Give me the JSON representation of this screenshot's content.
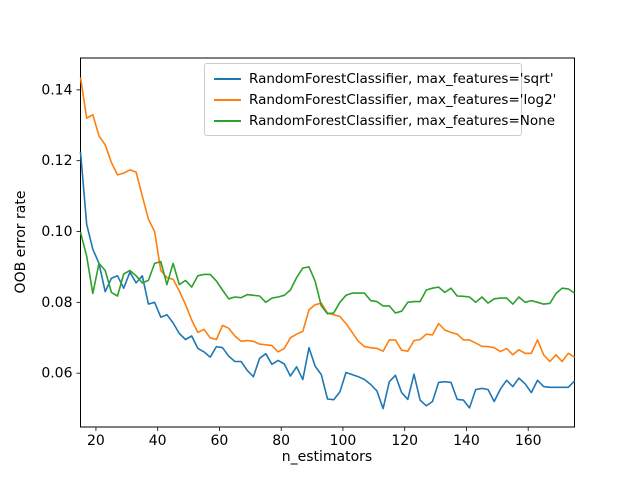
{
  "figure": {
    "background": "#ffffff"
  },
  "chart_data": {
    "type": "line",
    "title": "",
    "xlabel": "n_estimators",
    "ylabel": "OOB error rate",
    "xlim": [
      15,
      175
    ],
    "ylim": [
      0.0448,
      0.149
    ],
    "xticks": [
      20,
      40,
      60,
      80,
      100,
      120,
      140,
      160
    ],
    "xtick_labels": [
      "20",
      "40",
      "60",
      "80",
      "100",
      "120",
      "140",
      "160"
    ],
    "yticks": [
      0.06,
      0.08,
      0.1,
      0.12,
      0.14
    ],
    "ytick_labels": [
      "0.06",
      "0.08",
      "0.10",
      "0.12",
      "0.14"
    ],
    "grid": false,
    "legend_position": "upper center",
    "x": [
      15,
      17,
      19,
      21,
      23,
      25,
      27,
      29,
      31,
      33,
      35,
      37,
      39,
      41,
      43,
      45,
      47,
      49,
      51,
      53,
      55,
      57,
      59,
      61,
      63,
      65,
      67,
      69,
      71,
      73,
      75,
      77,
      79,
      81,
      83,
      85,
      87,
      89,
      91,
      93,
      95,
      97,
      99,
      101,
      103,
      105,
      107,
      109,
      111,
      113,
      115,
      117,
      119,
      121,
      123,
      125,
      127,
      129,
      131,
      133,
      135,
      137,
      139,
      141,
      143,
      145,
      147,
      149,
      151,
      153,
      155,
      157,
      159,
      161,
      163,
      165,
      167,
      169,
      171,
      173,
      175
    ],
    "series": [
      {
        "name": "RandomForestClassifier, max_features='sqrt'",
        "color": "#1f77b4",
        "values": [
          0.1225,
          0.102,
          0.095,
          0.091,
          0.083,
          0.0868,
          0.0875,
          0.084,
          0.0885,
          0.0855,
          0.0875,
          0.0795,
          0.08,
          0.0758,
          0.0765,
          0.0742,
          0.0712,
          0.0695,
          0.0705,
          0.067,
          0.066,
          0.0645,
          0.0675,
          0.0672,
          0.0648,
          0.0633,
          0.0633,
          0.0608,
          0.059,
          0.0642,
          0.0655,
          0.0625,
          0.0636,
          0.0626,
          0.0592,
          0.0618,
          0.0582,
          0.0672,
          0.062,
          0.0596,
          0.0527,
          0.0525,
          0.0547,
          0.0602,
          0.0596,
          0.059,
          0.0582,
          0.0568,
          0.055,
          0.05,
          0.0576,
          0.0594,
          0.0545,
          0.0526,
          0.0597,
          0.0524,
          0.0508,
          0.052,
          0.0574,
          0.0576,
          0.0574,
          0.0526,
          0.0524,
          0.0502,
          0.0554,
          0.0557,
          0.0554,
          0.052,
          0.0555,
          0.058,
          0.0562,
          0.0586,
          0.057,
          0.0545,
          0.058,
          0.0562,
          0.056,
          0.056,
          0.056,
          0.056,
          0.0578
        ]
      },
      {
        "name": "RandomForestClassifier, max_features='log2'",
        "color": "#ff7f0e",
        "values": [
          0.1435,
          0.132,
          0.133,
          0.127,
          0.1245,
          0.1195,
          0.116,
          0.1165,
          0.1174,
          0.1168,
          0.11,
          0.1035,
          0.1,
          0.089,
          0.087,
          0.0865,
          0.0832,
          0.0794,
          0.075,
          0.0715,
          0.0724,
          0.07,
          0.0695,
          0.0735,
          0.0727,
          0.0705,
          0.069,
          0.0692,
          0.069,
          0.0682,
          0.068,
          0.0678,
          0.066,
          0.067,
          0.07,
          0.071,
          0.0718,
          0.0779,
          0.0793,
          0.0798,
          0.077,
          0.0765,
          0.076,
          0.074,
          0.0715,
          0.069,
          0.0675,
          0.0672,
          0.067,
          0.0662,
          0.0694,
          0.0694,
          0.0665,
          0.0662,
          0.0692,
          0.0695,
          0.071,
          0.0708,
          0.074,
          0.0722,
          0.0715,
          0.071,
          0.0694,
          0.0694,
          0.0685,
          0.0676,
          0.0675,
          0.0672,
          0.0661,
          0.067,
          0.0652,
          0.0666,
          0.0656,
          0.0656,
          0.0694,
          0.0652,
          0.0633,
          0.0652,
          0.0633,
          0.0656,
          0.0645
        ]
      },
      {
        "name": "RandomForestClassifier, max_features=None",
        "color": "#2ca02c",
        "values": [
          0.0998,
          0.093,
          0.0825,
          0.091,
          0.089,
          0.0828,
          0.0818,
          0.088,
          0.089,
          0.0875,
          0.0855,
          0.0862,
          0.091,
          0.0915,
          0.085,
          0.091,
          0.085,
          0.0862,
          0.0843,
          0.0875,
          0.0879,
          0.0879,
          0.086,
          0.0835,
          0.081,
          0.0815,
          0.0813,
          0.0822,
          0.082,
          0.0818,
          0.08,
          0.0812,
          0.0815,
          0.082,
          0.0835,
          0.087,
          0.0897,
          0.09,
          0.086,
          0.079,
          0.0768,
          0.077,
          0.08,
          0.082,
          0.0826,
          0.0826,
          0.0826,
          0.0805,
          0.0802,
          0.079,
          0.079,
          0.077,
          0.0775,
          0.08,
          0.0802,
          0.0802,
          0.0835,
          0.084,
          0.0843,
          0.0828,
          0.084,
          0.0818,
          0.0817,
          0.0815,
          0.08,
          0.0815,
          0.0798,
          0.081,
          0.0812,
          0.0812,
          0.0795,
          0.0815,
          0.08,
          0.0805,
          0.08,
          0.0795,
          0.0797,
          0.0825,
          0.084,
          0.0838,
          0.0826
        ]
      }
    ]
  }
}
